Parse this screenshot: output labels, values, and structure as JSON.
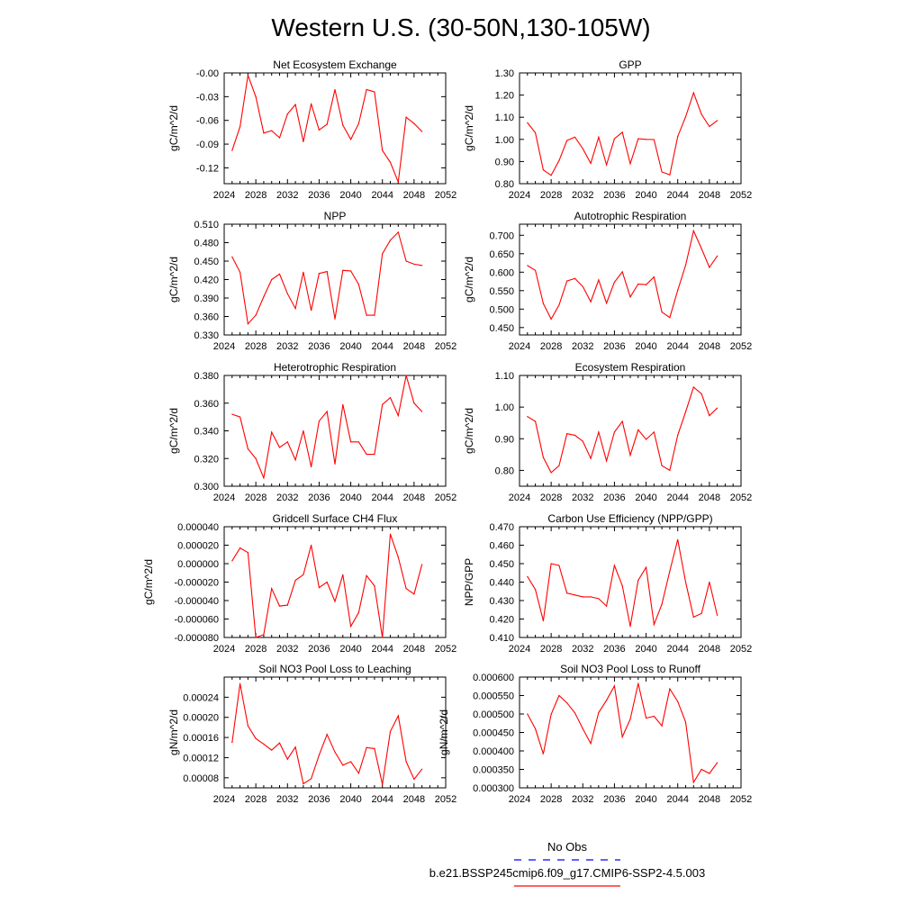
{
  "figure": {
    "title": "Western U.S. (30-50N,130-105W)",
    "legend": {
      "entries": [
        {
          "label": "No Obs",
          "color": "#0000ff",
          "style": "dashed"
        },
        {
          "label": "b.e21.BSSP245cmip6.f09_g17.CMIP6-SSP2-4.5.003",
          "color": "#ff0000",
          "style": "solid"
        }
      ]
    },
    "colors": {
      "series": "#ff0000",
      "obs": "#0000ff",
      "axis": "#000000"
    }
  },
  "chart_data": [
    {
      "type": "line",
      "title": "Net Ecosystem Exchange",
      "ylabel": "gC/m^2/d",
      "xlim": [
        2024,
        2052
      ],
      "xticks": [
        "2024",
        "2028",
        "2032",
        "2036",
        "2040",
        "2044",
        "2048",
        "2052"
      ],
      "ylim": [
        -0.14,
        0.0
      ],
      "yticks": [
        "-0.00",
        "-0.03",
        "-0.06",
        "-0.09",
        "-0.12"
      ],
      "x": [
        2025,
        2026,
        2027,
        2028,
        2029,
        2030,
        2031,
        2032,
        2033,
        2034,
        2035,
        2036,
        2037,
        2038,
        2039,
        2040,
        2041,
        2042,
        2043,
        2044,
        2045,
        2046,
        2047,
        2048,
        2049
      ],
      "series": [
        {
          "values": [
            -0.098,
            -0.068,
            -0.003,
            -0.03,
            -0.076,
            -0.073,
            -0.082,
            -0.052,
            -0.04,
            -0.087,
            -0.039,
            -0.072,
            -0.065,
            -0.021,
            -0.066,
            -0.084,
            -0.064,
            -0.021,
            -0.024,
            -0.098,
            -0.113,
            -0.138,
            -0.056,
            -0.064,
            -0.074
          ]
        }
      ]
    },
    {
      "type": "line",
      "title": "GPP",
      "ylabel": "gC/m^2/d",
      "xlim": [
        2024,
        2052
      ],
      "xticks": [
        "2024",
        "2028",
        "2032",
        "2036",
        "2040",
        "2044",
        "2048",
        "2052"
      ],
      "ylim": [
        0.8,
        1.3
      ],
      "yticks": [
        "0.80",
        "0.90",
        "1.00",
        "1.10",
        "1.20",
        "1.30"
      ],
      "x": [
        2025,
        2026,
        2027,
        2028,
        2029,
        2030,
        2031,
        2032,
        2033,
        2034,
        2035,
        2036,
        2037,
        2038,
        2039,
        2040,
        2041,
        2042,
        2043,
        2044,
        2045,
        2046,
        2047,
        2048,
        2049
      ],
      "series": [
        {
          "values": [
            1.075,
            1.03,
            0.862,
            0.838,
            0.904,
            0.995,
            1.01,
            0.958,
            0.892,
            1.01,
            0.885,
            1.003,
            1.032,
            0.89,
            1.003,
            1.0,
            0.999,
            0.853,
            0.84,
            1.013,
            1.102,
            1.21,
            1.113,
            1.058,
            1.085
          ]
        }
      ]
    },
    {
      "type": "line",
      "title": "NPP",
      "ylabel": "gC/m^2/d",
      "xlim": [
        2024,
        2052
      ],
      "xticks": [
        "2024",
        "2028",
        "2032",
        "2036",
        "2040",
        "2044",
        "2048",
        "2052"
      ],
      "ylim": [
        0.33,
        0.51
      ],
      "yticks": [
        "0.330",
        "0.360",
        "0.390",
        "0.420",
        "0.450",
        "0.480",
        "0.510"
      ],
      "x": [
        2025,
        2026,
        2027,
        2028,
        2029,
        2030,
        2031,
        2032,
        2033,
        2034,
        2035,
        2036,
        2037,
        2038,
        2039,
        2040,
        2041,
        2042,
        2043,
        2044,
        2045,
        2046,
        2047,
        2048,
        2049
      ],
      "series": [
        {
          "values": [
            0.457,
            0.432,
            0.348,
            0.362,
            0.392,
            0.42,
            0.429,
            0.397,
            0.373,
            0.432,
            0.37,
            0.43,
            0.433,
            0.356,
            0.435,
            0.434,
            0.412,
            0.362,
            0.362,
            0.462,
            0.484,
            0.497,
            0.45,
            0.445,
            0.443
          ]
        }
      ]
    },
    {
      "type": "line",
      "title": "Autotrophic Respiration",
      "ylabel": "gC/m^2/d",
      "xlim": [
        2024,
        2052
      ],
      "xticks": [
        "2024",
        "2028",
        "2032",
        "2036",
        "2040",
        "2044",
        "2048",
        "2052"
      ],
      "ylim": [
        0.43,
        0.73
      ],
      "yticks": [
        "0.450",
        "0.500",
        "0.550",
        "0.600",
        "0.650",
        "0.700"
      ],
      "x": [
        2025,
        2026,
        2027,
        2028,
        2029,
        2030,
        2031,
        2032,
        2033,
        2034,
        2035,
        2036,
        2037,
        2038,
        2039,
        2040,
        2041,
        2042,
        2043,
        2044,
        2045,
        2046,
        2047,
        2048,
        2049
      ],
      "series": [
        {
          "values": [
            0.618,
            0.605,
            0.515,
            0.473,
            0.511,
            0.576,
            0.583,
            0.561,
            0.52,
            0.579,
            0.516,
            0.573,
            0.601,
            0.533,
            0.568,
            0.566,
            0.587,
            0.492,
            0.477,
            0.551,
            0.619,
            0.712,
            0.664,
            0.613,
            0.644
          ]
        }
      ]
    },
    {
      "type": "line",
      "title": "Heterotrophic Respiration",
      "ylabel": "gC/m^2/d",
      "xlim": [
        2024,
        2052
      ],
      "xticks": [
        "2024",
        "2028",
        "2032",
        "2036",
        "2040",
        "2044",
        "2048",
        "2052"
      ],
      "ylim": [
        0.3,
        0.38
      ],
      "yticks": [
        "0.300",
        "0.320",
        "0.340",
        "0.360",
        "0.380"
      ],
      "x": [
        2025,
        2026,
        2027,
        2028,
        2029,
        2030,
        2031,
        2032,
        2033,
        2034,
        2035,
        2036,
        2037,
        2038,
        2039,
        2040,
        2041,
        2042,
        2043,
        2044,
        2045,
        2046,
        2047,
        2048,
        2049
      ],
      "series": [
        {
          "values": [
            0.352,
            0.35,
            0.327,
            0.32,
            0.306,
            0.339,
            0.328,
            0.332,
            0.319,
            0.34,
            0.314,
            0.347,
            0.354,
            0.316,
            0.359,
            0.332,
            0.332,
            0.323,
            0.323,
            0.359,
            0.364,
            0.351,
            0.38,
            0.36,
            0.354
          ]
        }
      ]
    },
    {
      "type": "line",
      "title": "Ecosystem Respiration",
      "ylabel": "gC/m^2/d",
      "xlim": [
        2024,
        2052
      ],
      "xticks": [
        "2024",
        "2028",
        "2032",
        "2036",
        "2040",
        "2044",
        "2048",
        "2052"
      ],
      "ylim": [
        0.75,
        1.1
      ],
      "yticks": [
        "0.80",
        "0.90",
        "1.00",
        "1.10"
      ],
      "x": [
        2025,
        2026,
        2027,
        2028,
        2029,
        2030,
        2031,
        2032,
        2033,
        2034,
        2035,
        2036,
        2037,
        2038,
        2039,
        2040,
        2041,
        2042,
        2043,
        2044,
        2045,
        2046,
        2047,
        2048,
        2049
      ],
      "series": [
        {
          "values": [
            0.97,
            0.955,
            0.841,
            0.793,
            0.815,
            0.916,
            0.911,
            0.892,
            0.838,
            0.921,
            0.83,
            0.921,
            0.955,
            0.848,
            0.928,
            0.898,
            0.921,
            0.815,
            0.8,
            0.911,
            0.985,
            1.063,
            1.042,
            0.973,
            0.997
          ]
        }
      ]
    },
    {
      "type": "line",
      "title": "Gridcell Surface CH4 Flux",
      "ylabel": "gC/m^2/d",
      "xlim": [
        2024,
        2052
      ],
      "xticks": [
        "2024",
        "2028",
        "2032",
        "2036",
        "2040",
        "2044",
        "2048",
        "2052"
      ],
      "ylim": [
        -8e-05,
        4e-05
      ],
      "yticks": [
        "-0.000080",
        "-0.000060",
        "-0.000040",
        "-0.000020",
        "0.000000",
        "0.000020",
        "0.000040"
      ],
      "x": [
        2025,
        2026,
        2027,
        2028,
        2029,
        2030,
        2031,
        2032,
        2033,
        2034,
        2035,
        2036,
        2037,
        2038,
        2039,
        2040,
        2041,
        2042,
        2043,
        2044,
        2045,
        2046,
        2047,
        2048,
        2049
      ],
      "series": [
        {
          "values": [
            3e-06,
            1.7e-05,
            1.2e-05,
            -8e-05,
            -7.7e-05,
            -2.7e-05,
            -4.6e-05,
            -4.5e-05,
            -1.8e-05,
            -1.2e-05,
            2e-05,
            -2.6e-05,
            -2e-05,
            -4.1e-05,
            -1.2e-05,
            -6.8e-05,
            -5.3e-05,
            -1.3e-05,
            -2.4e-05,
            -8e-05,
            3.2e-05,
            7e-06,
            -2.7e-05,
            -3.3e-05,
            -1e-06
          ]
        }
      ]
    },
    {
      "type": "line",
      "title": "Carbon Use Efficiency (NPP/GPP)",
      "ylabel": "NPP/GPP",
      "xlim": [
        2024,
        2052
      ],
      "xticks": [
        "2024",
        "2028",
        "2032",
        "2036",
        "2040",
        "2044",
        "2048",
        "2052"
      ],
      "ylim": [
        0.41,
        0.47
      ],
      "yticks": [
        "0.410",
        "0.420",
        "0.430",
        "0.440",
        "0.450",
        "0.460",
        "0.470"
      ],
      "x": [
        2025,
        2026,
        2027,
        2028,
        2029,
        2030,
        2031,
        2032,
        2033,
        2034,
        2035,
        2036,
        2037,
        2038,
        2039,
        2040,
        2041,
        2042,
        2043,
        2044,
        2045,
        2046,
        2047,
        2048,
        2049
      ],
      "series": [
        {
          "values": [
            0.443,
            0.436,
            0.419,
            0.45,
            0.449,
            0.434,
            0.433,
            0.432,
            0.432,
            0.431,
            0.427,
            0.449,
            0.438,
            0.416,
            0.441,
            0.448,
            0.417,
            0.428,
            0.446,
            0.463,
            0.44,
            0.421,
            0.423,
            0.44,
            0.422
          ]
        }
      ]
    },
    {
      "type": "line",
      "title": "Soil NO3 Pool Loss to Leaching",
      "ylabel": "gN/m^2/d",
      "xlim": [
        2024,
        2052
      ],
      "xticks": [
        "2024",
        "2028",
        "2032",
        "2036",
        "2040",
        "2044",
        "2048",
        "2052"
      ],
      "ylim": [
        6e-05,
        0.00028
      ],
      "yticks": [
        "0.00008",
        "0.00012",
        "0.00016",
        "0.00020",
        "0.00024"
      ],
      "x": [
        2025,
        2026,
        2027,
        2028,
        2029,
        2030,
        2031,
        2032,
        2033,
        2034,
        2035,
        2036,
        2037,
        2038,
        2039,
        2040,
        2041,
        2042,
        2043,
        2044,
        2045,
        2046,
        2047,
        2048,
        2049
      ],
      "series": [
        {
          "values": [
            0.00015,
            0.000267,
            0.000183,
            0.000158,
            0.000147,
            0.000135,
            0.000149,
            0.000117,
            0.000141,
            6.8e-05,
            7.8e-05,
            0.000125,
            0.000166,
            0.000131,
            0.000105,
            0.000112,
            8.9e-05,
            0.00014,
            0.000138,
            6.7e-05,
            0.000172,
            0.000203,
            0.000112,
            7.7e-05,
            9.7e-05
          ]
        }
      ]
    },
    {
      "type": "line",
      "title": "Soil NO3 Pool Loss to Runoff",
      "ylabel": "gN/m^2/d",
      "xlim": [
        2024,
        2052
      ],
      "xticks": [
        "2024",
        "2028",
        "2032",
        "2036",
        "2040",
        "2044",
        "2048",
        "2052"
      ],
      "ylim": [
        0.0003,
        0.0006
      ],
      "yticks": [
        "0.000300",
        "0.000350",
        "0.000400",
        "0.000450",
        "0.000500",
        "0.000550",
        "0.000600"
      ],
      "x": [
        2025,
        2026,
        2027,
        2028,
        2029,
        2030,
        2031,
        2032,
        2033,
        2034,
        2035,
        2036,
        2037,
        2038,
        2039,
        2040,
        2041,
        2042,
        2043,
        2044,
        2045,
        2046,
        2047,
        2048,
        2049
      ],
      "series": [
        {
          "values": [
            0.0005,
            0.00046,
            0.000392,
            0.000499,
            0.00055,
            0.00053,
            0.000503,
            0.00046,
            0.00042,
            0.000504,
            0.000537,
            0.000576,
            0.000438,
            0.000486,
            0.000583,
            0.000489,
            0.000494,
            0.000468,
            0.000568,
            0.000534,
            0.000478,
            0.000315,
            0.00035,
            0.000339,
            0.000368
          ]
        }
      ]
    }
  ]
}
